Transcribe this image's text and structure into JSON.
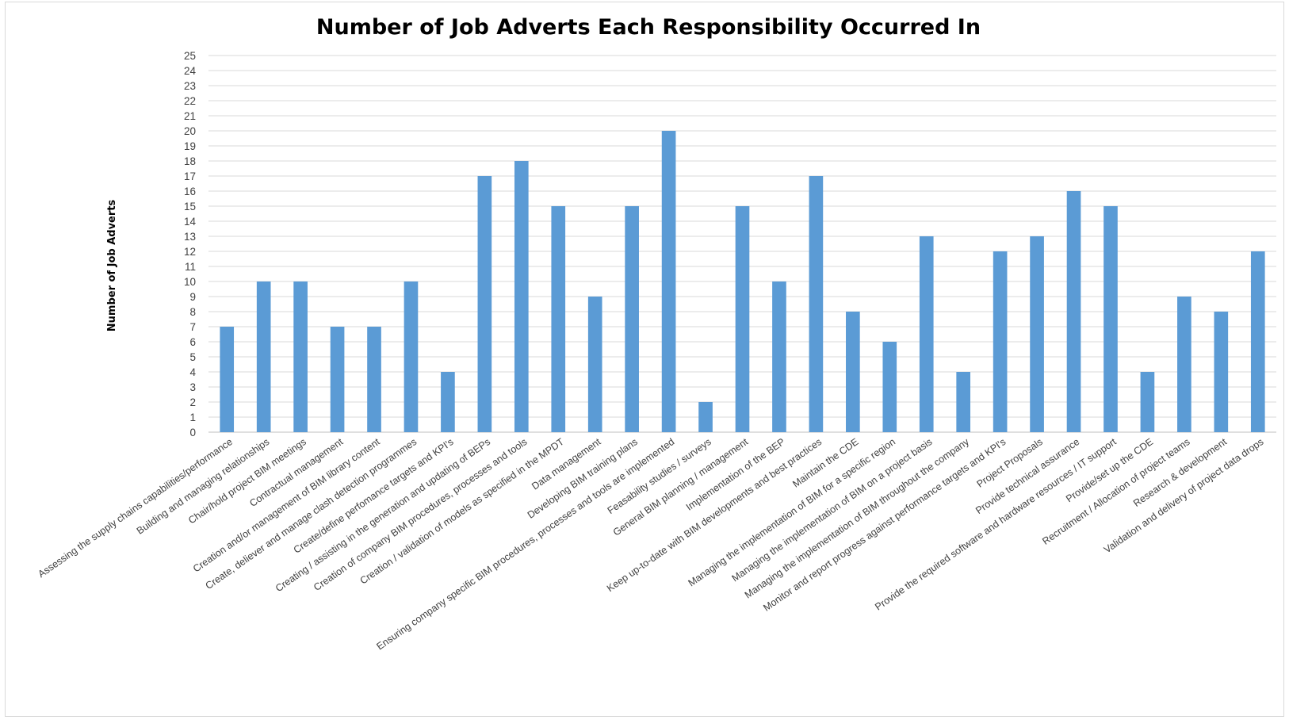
{
  "chart_data": {
    "type": "bar",
    "title": "Number of Job Adverts Each Responsibility Occurred In",
    "xlabel": "",
    "ylabel": "Number of Job Adverts",
    "ylim": [
      0,
      25
    ],
    "yticks": [
      0,
      1,
      2,
      3,
      4,
      5,
      6,
      7,
      8,
      9,
      10,
      11,
      12,
      13,
      14,
      15,
      16,
      17,
      18,
      19,
      20,
      21,
      22,
      23,
      24,
      25
    ],
    "grid": true,
    "bar_color": "#5b9bd5",
    "categories": [
      "Assessing the supply chains capabilities/performance",
      "Building and managing relationships",
      "Chair/hold project BIM meetings",
      "Contractual management",
      "Creation and/or management of BIM library content",
      "Create, deliever and manage clash detection programmes",
      "Create/define perfomance targets and KPI's",
      "Creating / assisting in the generation and updating of BEPs",
      "Creation of company BIM procedures, processes and tools",
      "Creation / validation of models as specified in the MPDT",
      "Data management",
      "Developing BIM training plans",
      "Ensuring company specific BIM procedures, processes and tools are implemented",
      "Feasability studies / surveys",
      "General BIM planning / management",
      "Implementation of the BEP",
      "Keep up-to-date with BIM developments and best practices",
      "Maintain the CDE",
      "Managing the implementation of BIM for a specific region",
      "Managing the implementation of BIM on a project basis",
      "Managing the implementation of BIM throughout the company",
      "Monitor and report progress against performance targets and KPI's",
      "Project Proposals",
      "Provide technical assurance",
      "Provide the required software and hardware resources / IT support",
      "Provide/set up the CDE",
      "Recruitment / Allocation of project teams",
      "Research & development",
      "Validation and delivery of project data drops"
    ],
    "values": [
      7,
      10,
      10,
      7,
      7,
      10,
      4,
      17,
      18,
      15,
      9,
      15,
      20,
      2,
      15,
      10,
      17,
      8,
      6,
      13,
      4,
      12,
      13,
      16,
      15,
      4,
      9,
      8,
      12
    ]
  }
}
